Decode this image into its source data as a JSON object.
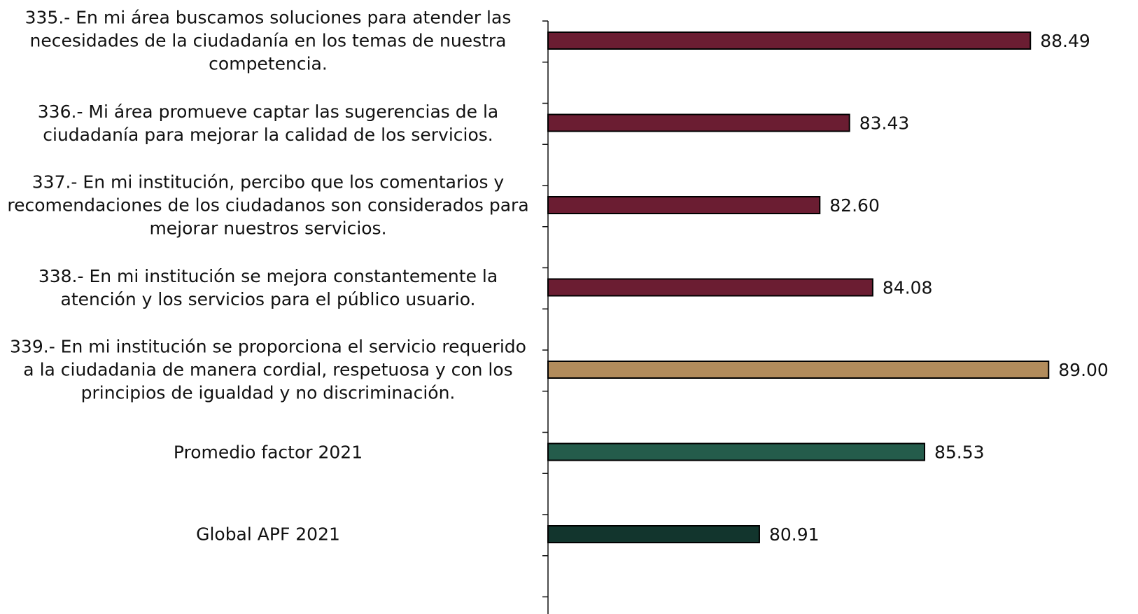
{
  "chart_data": {
    "type": "barh",
    "categories": [
      "335.- En mi área buscamos soluciones para atender las necesidades de la ciudadanía en los temas de nuestra competencia.",
      "336.- Mi área promueve captar las sugerencias de la ciudadanía para mejorar la calidad de los servicios.",
      "337.- En mi institución, percibo que los comentarios y recomendaciones de los ciudadanos son considerados para mejorar nuestros servicios.",
      "338.- En mi institución se mejora constantemente la atención y los servicios para el público usuario.",
      "339.- En mi institución se proporciona el servicio requerido a la ciudadania de manera cordial, respetuosa y con los principios de igualdad y no discriminación.",
      "Promedio factor 2021",
      "Global APF 2021"
    ],
    "values": [
      88.49,
      83.43,
      82.6,
      84.08,
      89,
      85.53,
      80.91
    ],
    "value_labels": [
      "88.49",
      "83.43",
      "82.60",
      "84.08",
      "89.00",
      "85.53",
      "80.91"
    ],
    "colors": [
      "#6b1d32",
      "#6b1d32",
      "#6b1d32",
      "#6b1d32",
      "#b28c5c",
      "#245c4b",
      "#12352d"
    ],
    "xlim": [
      75,
      91.5
    ]
  }
}
